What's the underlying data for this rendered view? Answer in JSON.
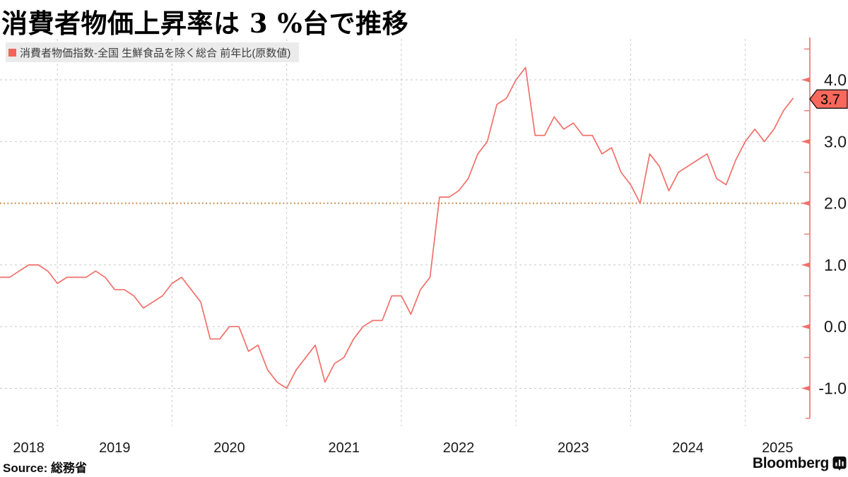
{
  "title": "消費者物価上昇率は 3 %台で推移",
  "legend": {
    "label": "消費者物価指数-全国 生鮮食品を除く総合 前年比(原数値)"
  },
  "source_label": "Source: 総務省",
  "brand": {
    "name": "Bloomberg",
    "icon": "bloomberg-mark"
  },
  "colors": {
    "line": "#f1706a",
    "axis": "#f1706a",
    "grid": "#c7c7c7",
    "threshold": "#c8803f",
    "badge_fill": "#f9685c",
    "badge_border": "#141414",
    "legend_bg": "#ebebeb",
    "legend_swatch": "#f1655b",
    "text": "#191919"
  },
  "chart_data": {
    "type": "line",
    "title": "消費者物価上昇率は 3 %台で推移",
    "frequency": "monthly",
    "x_start": "2018-06",
    "x_end": "2025-05",
    "series": [
      {
        "name": "消費者物価指数-全国 生鮮食品を除く総合 前年比(原数値)",
        "values": [
          0.8,
          0.8,
          0.9,
          1.0,
          1.0,
          0.9,
          0.7,
          0.8,
          0.8,
          0.8,
          0.9,
          0.8,
          0.6,
          0.6,
          0.5,
          0.3,
          0.4,
          0.5,
          0.7,
          0.8,
          0.6,
          0.4,
          -0.2,
          -0.2,
          0.0,
          0.0,
          -0.4,
          -0.3,
          -0.7,
          -0.9,
          -1.0,
          -0.7,
          -0.5,
          -0.3,
          -0.9,
          -0.6,
          -0.5,
          -0.2,
          0.0,
          0.1,
          0.1,
          0.5,
          0.5,
          0.2,
          0.6,
          0.8,
          2.1,
          2.1,
          2.2,
          2.4,
          2.8,
          3.0,
          3.6,
          3.7,
          4.0,
          4.2,
          3.1,
          3.1,
          3.4,
          3.2,
          3.3,
          3.1,
          3.1,
          2.8,
          2.9,
          2.5,
          2.3,
          2.0,
          2.8,
          2.6,
          2.2,
          2.5,
          2.6,
          2.7,
          2.8,
          2.4,
          2.3,
          2.7,
          3.0,
          3.2,
          3.0,
          3.2,
          3.5,
          3.7
        ]
      }
    ],
    "x_tick_labels": [
      "2018",
      "2019",
      "2020",
      "2021",
      "2022",
      "2023",
      "2024",
      "2025"
    ],
    "y_tick_labels": [
      "4.0",
      "3.0",
      "2.0",
      "1.0",
      "0.0",
      "-1.0"
    ],
    "y_minor_ticks": [
      4.5,
      3.5,
      2.5,
      1.5,
      0.5,
      -0.5
    ],
    "ylim": [
      -1.5,
      4.65
    ],
    "threshold_value": 2.0,
    "last_point_label": "3.7",
    "grid": true,
    "legend_position": "top-left",
    "y_axis_side": "right"
  }
}
